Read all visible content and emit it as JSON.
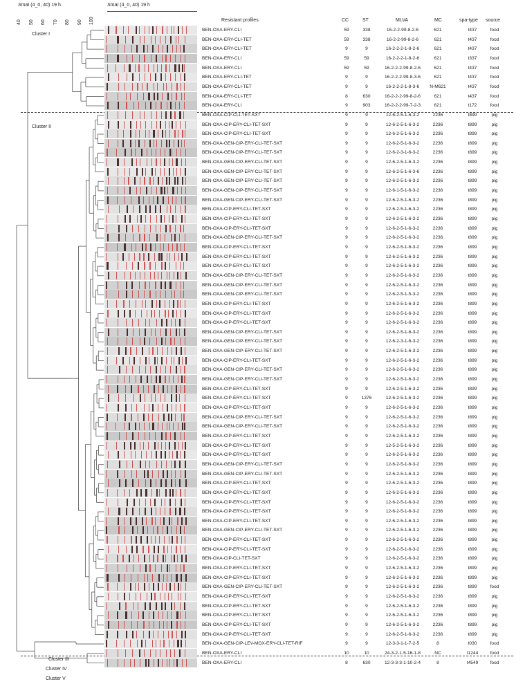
{
  "header": {
    "left_title_italic": "SmaI",
    "left_title_rest": " (4_0, 40) 19 h",
    "gel_title_italic": "SmaI",
    "gel_title_rest": " (4_0, 40) 19 h",
    "scale_ticks": [
      "40",
      "50",
      "60",
      "70",
      "80",
      "90",
      "100"
    ]
  },
  "columns": {
    "profile": "Resistant profiles",
    "cc": "CC",
    "st": "ST",
    "mlva": "MLVA",
    "mc": "MC",
    "spa": "spa-type",
    "source": "source"
  },
  "clusters": [
    {
      "label": "Cluster I"
    },
    {
      "label": "Cluster II"
    },
    {
      "label": "Cluster III"
    },
    {
      "label": "Cluster IV"
    },
    {
      "label": "Cluster V"
    }
  ],
  "rows": [
    {
      "profile": "BEN-OXA-ERY-CLI",
      "cc": "59",
      "st": "338",
      "mlva": "16-2-2-99-8-2-6",
      "mc": "621",
      "spa": "t437",
      "source": "food"
    },
    {
      "profile": "BEN-OXA-ERY-CLI-TET",
      "cc": "59",
      "st": "338",
      "mlva": "16-2-2-99-8-2-6",
      "mc": "621",
      "spa": "t437",
      "source": "food"
    },
    {
      "profile": "BEN-OXA-ERY-CLI-TET",
      "cc": "9",
      "st": "9",
      "mlva": "16-2-2-2-1-8-2-6",
      "mc": "621",
      "spa": "t437",
      "source": "food"
    },
    {
      "profile": "BEN-OXA-ERY-CLI",
      "cc": "59",
      "st": "59",
      "mlva": "16-2-2-2-1-8-2-6",
      "mc": "621",
      "spa": "t337",
      "source": "food"
    },
    {
      "profile": "BEN-OXA-ERY-CLI",
      "cc": "59",
      "st": "59",
      "mlva": "16-2-2-2-99-8-2-6",
      "mc": "621",
      "spa": "t437",
      "source": "food"
    },
    {
      "profile": "BEN-OXA-ERY-CLI-TET",
      "cc": "9",
      "st": "9",
      "mlva": "16-2-2-2-99-8-3-6",
      "mc": "621",
      "spa": "t437",
      "source": "food"
    },
    {
      "profile": "BEN-OXA-ERY-CLI-TET",
      "cc": "9",
      "st": "9",
      "mlva": "16-2-2-2-1-8-3-6",
      "mc": "N-M621",
      "spa": "t437",
      "source": "food"
    },
    {
      "profile": "BEN-OXA-ERY-CLI-TET",
      "cc": "8",
      "st": "630",
      "mlva": "16-2-2-2-99-8-2-6",
      "mc": "621",
      "spa": "t437",
      "source": "food"
    },
    {
      "profile": "BEN-OXA-ERY-CLI",
      "cc": "9",
      "st": "903",
      "mlva": "16-2-2-2-99-7-2-3",
      "mc": "621",
      "spa": "t172",
      "source": "food"
    },
    {
      "profile": "BEN-OXA-CIP-CLI-TET-SXT",
      "cc": "9",
      "st": "9",
      "mlva": "12-6-2-5-1-6-3-2",
      "mc": "2236",
      "spa": "t899",
      "source": "pig"
    },
    {
      "profile": "BEN-OXA-CIP-ERY-CLI-TET-SXT",
      "cc": "9",
      "st": "9",
      "mlva": "12-6-2-5-1-6-3-2",
      "mc": "2236",
      "spa": "t899",
      "source": "pig"
    },
    {
      "profile": "BEN-OXA-CIP-ERY-CLI-TET-SXT",
      "cc": "9",
      "st": "9",
      "mlva": "12-6-2-5-1-6-3-2",
      "mc": "2236",
      "spa": "t899",
      "source": "pig"
    },
    {
      "profile": "BEN-OXA-GEN-CIP-ERY-CLI-TET-SXT",
      "cc": "9",
      "st": "9",
      "mlva": "12-6-2-5-1-6-3-2",
      "mc": "2236",
      "spa": "t899",
      "source": "pig"
    },
    {
      "profile": "BEN-OXA-GEN-CIP-ERY-CLI-TET-SXT",
      "cc": "9",
      "st": "9",
      "mlva": "12-6-2-3-1-6-3-2",
      "mc": "2236",
      "spa": "t899",
      "source": "pig"
    },
    {
      "profile": "BEN-OXA-GEN-CIP-ERY-CLI-TET-SXT",
      "cc": "9",
      "st": "9",
      "mlva": "12-6-2-5-1-6-3-2",
      "mc": "2236",
      "spa": "t899",
      "source": "pig"
    },
    {
      "profile": "BEN-OXA-GEN-CIP-ERY-CLI-TET-SXT",
      "cc": "9",
      "st": "9",
      "mlva": "12-6-2-5-1-6-3-6",
      "mc": "2236",
      "spa": "t899",
      "source": "pig"
    },
    {
      "profile": "BEN-OXA-GEN-CIP-ERY-CLI-TET-SXT",
      "cc": "9",
      "st": "9",
      "mlva": "12-6-2-5-1-6-3-2",
      "mc": "2236",
      "spa": "t899",
      "source": "pig"
    },
    {
      "profile": "BEN-OXA-GEN-CIP-ERY-CLI-TET-SXT",
      "cc": "9",
      "st": "9",
      "mlva": "12-6-1-5-1-6-3-2",
      "mc": "2236",
      "spa": "t899",
      "source": "pig"
    },
    {
      "profile": "BEN-OXA-GEN-CIP-ERY-CLI-TET-SXT",
      "cc": "9",
      "st": "9",
      "mlva": "12-6-2-5-1-6-3-2",
      "mc": "2236",
      "spa": "t899",
      "source": "pig"
    },
    {
      "profile": "BEN-OXA-CIP-ERY-CLI-TET-SXT",
      "cc": "9",
      "st": "9",
      "mlva": "12-6-2-5-1-6-3-2",
      "mc": "2236",
      "spa": "t899",
      "source": "pig"
    },
    {
      "profile": "BEN-OXA-CIP-ERY-CLI-TET-SXT",
      "cc": "9",
      "st": "9",
      "mlva": "12-6-2-5-1-6-3-2",
      "mc": "2236",
      "spa": "t899",
      "source": "pig"
    },
    {
      "profile": "BEN-OXA-CIP-ERY-CLI-TET-SXT",
      "cc": "9",
      "st": "9",
      "mlva": "12-6-2-5-1-6-3-2",
      "mc": "2236",
      "spa": "t899",
      "source": "pig"
    },
    {
      "profile": "BEN-OXA-GEN-CIP-ERY-CLI-TET-SXT",
      "cc": "9",
      "st": "9",
      "mlva": "12-6-2-5-1-6-3-2",
      "mc": "2236",
      "spa": "t899",
      "source": "pig"
    },
    {
      "profile": "BEN-OXA-CIP-ERY-CLI-TET-SXT",
      "cc": "9",
      "st": "9",
      "mlva": "12-6-2-5-1-6-3-2",
      "mc": "2236",
      "spa": "t899",
      "source": "pig"
    },
    {
      "profile": "BEN-OXA-CIP-ERY-CLI-TET-SXT",
      "cc": "9",
      "st": "9",
      "mlva": "12-6-2-5-1-6-3-2",
      "mc": "2236",
      "spa": "t899",
      "source": "pig"
    },
    {
      "profile": "BEN-OXA-CIP-ERY-CLI-TET-SXT",
      "cc": "9",
      "st": "9",
      "mlva": "12-6-2-5-1-6-3-2",
      "mc": "2236",
      "spa": "t899",
      "source": "pig"
    },
    {
      "profile": "BEN-OXA-GEN-CIP-ERY-CLI-TET-SXT",
      "cc": "9",
      "st": "9",
      "mlva": "12-6-2-5-1-6-3-2",
      "mc": "2236",
      "spa": "t899",
      "source": "pig"
    },
    {
      "profile": "BEN-OXA-GEN-CIP-ERY-CLI-TET-SXT",
      "cc": "9",
      "st": "9",
      "mlva": "12-6-2-5-1-6-3-2",
      "mc": "2236",
      "spa": "t899",
      "source": "pig"
    },
    {
      "profile": "BEN-OXA-GEN-CIP-ERY-CLI-TET-SXT",
      "cc": "9",
      "st": "9",
      "mlva": "12-6-2-5-1-5-3-2",
      "mc": "2236",
      "spa": "t899",
      "source": "pig"
    },
    {
      "profile": "BEN-OXA-CIP-ERY-CLI-TET-SXT",
      "cc": "9",
      "st": "9",
      "mlva": "12-6-2-5-1-6-3-2",
      "mc": "2236",
      "spa": "t899",
      "source": "pig"
    },
    {
      "profile": "BEN-OXA-CIP-ERY-CLI-TET-SXT",
      "cc": "9",
      "st": "9",
      "mlva": "12-6-2-5-1-6-3-2",
      "mc": "2236",
      "spa": "t899",
      "source": "pig"
    },
    {
      "profile": "BEN-OXA-CIP-ERY-CLI-TET-SXT",
      "cc": "9",
      "st": "9",
      "mlva": "12-6-2-5-1-6-3-2",
      "mc": "2236",
      "spa": "t899",
      "source": "pig"
    },
    {
      "profile": "BEN-OXA-GEN-CIP-ERY-CLI-TET-SXT",
      "cc": "9",
      "st": "9",
      "mlva": "12-6-2-5-1-6-3-2",
      "mc": "2236",
      "spa": "t899",
      "source": "pig"
    },
    {
      "profile": "BEN-OXA-GEN-CIP-ERY-CLI-TET-SXT",
      "cc": "9",
      "st": "9",
      "mlva": "12-6-2-3-1-6-3-2",
      "mc": "2236",
      "spa": "t899",
      "source": "pig"
    },
    {
      "profile": "BEN-OXA-GEN-CIP-ERY-CLI-TET-SXT",
      "cc": "9",
      "st": "9",
      "mlva": "12-6-2-5-1-6-3-2",
      "mc": "2236",
      "spa": "t899",
      "source": "pig"
    },
    {
      "profile": "BEN-OXA-CIP-ERY-CLI-TET-SXT",
      "cc": "9",
      "st": "9",
      "mlva": "12-6-2-5-1-6-3-2",
      "mc": "2236",
      "spa": "t899",
      "source": "pig"
    },
    {
      "profile": "BEN-OXA-GEN-CIP-ERY-CLI-TET-SXT",
      "cc": "9",
      "st": "9",
      "mlva": "12-6-2-5-1-6-3-2",
      "mc": "2236",
      "spa": "t899",
      "source": "pig"
    },
    {
      "profile": "BEN-OXA-GEN-CIP-ERY-CLI-TET-SXT",
      "cc": "9",
      "st": "9",
      "mlva": "12-6-2-5-1-6-3-2",
      "mc": "2236",
      "spa": "t899",
      "source": "pig"
    },
    {
      "profile": "BEN-OXA-CIP-ERY-CLI-TET-SXT",
      "cc": "9",
      "st": "9",
      "mlva": "12-6-2-5-1-6-3-2",
      "mc": "2236",
      "spa": "t899",
      "source": "pig"
    },
    {
      "profile": "BEN-OXA-CIP-ERY-CLI-TET-SXT",
      "cc": "9",
      "st": "1376",
      "mlva": "12-6-2-5-1-6-3-2",
      "mc": "2236",
      "spa": "t899",
      "source": "pig"
    },
    {
      "profile": "BEN-OXA-CIP-ERY-CLI-TET-SXT",
      "cc": "9",
      "st": "9",
      "mlva": "12-6-2-5-1-6-3-2",
      "mc": "2236",
      "spa": "t899",
      "source": "pig"
    },
    {
      "profile": "BEN-OXA-GEN-CIP-ERY-CLI-TET-SXT",
      "cc": "9",
      "st": "9",
      "mlva": "12-6-2-5-1-6-3-2",
      "mc": "2236",
      "spa": "t899",
      "source": "pig"
    },
    {
      "profile": "BEN-OXA-GEN-CIP-ERY-CLI-TET-SXT",
      "cc": "9",
      "st": "9",
      "mlva": "12-6-2-5-1-6-3-2",
      "mc": "2236",
      "spa": "t899",
      "source": "pig"
    },
    {
      "profile": "BEN-OXA-CIP-ERY-CLI-TET-SXT",
      "cc": "9",
      "st": "9",
      "mlva": "12-6-2-5-1-6-3-2",
      "mc": "2236",
      "spa": "t899",
      "source": "pig"
    },
    {
      "profile": "BEN-OXA-CIP-ERY-CLI-TET-SXT",
      "cc": "9",
      "st": "9",
      "mlva": "12-5-2-5-1-6-3-2",
      "mc": "2236",
      "spa": "t899",
      "source": "pig"
    },
    {
      "profile": "BEN-OXA-CIP-ERY-CLI-TET-SXT",
      "cc": "9",
      "st": "9",
      "mlva": "12-6-2-5-1-6-3-2",
      "mc": "2236",
      "spa": "t899",
      "source": "pig"
    },
    {
      "profile": "BEN-OXA-GEN-CIP-ERY-CLI-TET-SXT",
      "cc": "9",
      "st": "9",
      "mlva": "12-6-2-5-1-6-3-2",
      "mc": "2236",
      "spa": "t899",
      "source": "pig"
    },
    {
      "profile": "BEN-OXA-GEN-CIP-ERY-CLI-TET-SXT",
      "cc": "9",
      "st": "9",
      "mlva": "12-6-2-5-1-6-3-2",
      "mc": "2236",
      "spa": "t899",
      "source": "pig"
    },
    {
      "profile": "BEN-OXA-CIP-ERY-CLI-TET-SXT",
      "cc": "9",
      "st": "9",
      "mlva": "12-6-2-5-1-6-3-2",
      "mc": "2236",
      "spa": "t899",
      "source": "pig"
    },
    {
      "profile": "BEN-OXA-CIP-ERY-CLI-TET-SXT",
      "cc": "9",
      "st": "9",
      "mlva": "12-6-2-5-1-6-3-2",
      "mc": "2236",
      "spa": "t899",
      "source": "pig"
    },
    {
      "profile": "BEN-OXA-CIP-ERY-CLI-TET-SXT",
      "cc": "9",
      "st": "9",
      "mlva": "12-6-2-5-1-6-3-2",
      "mc": "2236",
      "spa": "t899",
      "source": "pig"
    },
    {
      "profile": "BEN-OXA-CIP-ERY-CLI-TET-SXT",
      "cc": "9",
      "st": "9",
      "mlva": "12-6-2-5-1-6-3-2",
      "mc": "2236",
      "spa": "t899",
      "source": "pig"
    },
    {
      "profile": "BEN-OXA-CIP-ERY-CLI-TET-SXT",
      "cc": "9",
      "st": "9",
      "mlva": "12-6-2-5-1-6-3-2",
      "mc": "2236",
      "spa": "t899",
      "source": "pig"
    },
    {
      "profile": "BEN-OXA-GEN-CIP-ERY-CLI-TET-SXT",
      "cc": "9",
      "st": "9",
      "mlva": "12-6-2-5-1-6-3-2",
      "mc": "2236",
      "spa": "t899",
      "source": "pig"
    },
    {
      "profile": "BEN-OXA-CIP-ERY-CLI-TET-SXT",
      "cc": "9",
      "st": "9",
      "mlva": "12-6-2-5-1-6-3-2",
      "mc": "2236",
      "spa": "t899",
      "source": "pig"
    },
    {
      "profile": "BEN-OXA-CIP-ERY-CLI-TET-SXT",
      "cc": "9",
      "st": "9",
      "mlva": "12-6-2-5-1-6-3-2",
      "mc": "2236",
      "spa": "t899",
      "source": "pig"
    },
    {
      "profile": "BEN-OXA-CIP-CLI-TET-SXT",
      "cc": "9",
      "st": "9",
      "mlva": "12-6-2-5-1-6-3-2",
      "mc": "2236",
      "spa": "t899",
      "source": "pig"
    },
    {
      "profile": "BEN-OXA-CIP-ERY-CLI-TET-SXT",
      "cc": "9",
      "st": "9",
      "mlva": "12-6-2-5-1-6-3-2",
      "mc": "2236",
      "spa": "t899",
      "source": "pig"
    },
    {
      "profile": "BEN-OXA-CIP-ERY-CLI-TET-SXT",
      "cc": "9",
      "st": "9",
      "mlva": "12-6-2-5-1-6-3-2",
      "mc": "2236",
      "spa": "t899",
      "source": "pig"
    },
    {
      "profile": "BEN-OXA-GEN-CIP-ERY-CLI-TET-SXT",
      "cc": "9",
      "st": "9",
      "mlva": "12-6-2-5-1-6-3-2",
      "mc": "2236",
      "spa": "t899",
      "source": "food"
    },
    {
      "profile": "BEN-OXA-CIP-ERY-CLI-TET-SXT",
      "cc": "9",
      "st": "9",
      "mlva": "12-6-2-5-1-6-3-2",
      "mc": "2236",
      "spa": "t899",
      "source": "pig"
    },
    {
      "profile": "BEN-OXA-CIP-ERY-CLI-TET-SXT",
      "cc": "9",
      "st": "9",
      "mlva": "12-6-2-5-1-6-3-2",
      "mc": "2236",
      "spa": "t899",
      "source": "pig"
    },
    {
      "profile": "BEN-OXA-CIP-ERY-CLI-TET-SXT",
      "cc": "9",
      "st": "9",
      "mlva": "12-6-2-5-1-6-3-2",
      "mc": "2236",
      "spa": "t899",
      "source": "pig"
    },
    {
      "profile": "BEN-OXA-CIP-ERY-CLI-TET-SXT",
      "cc": "9",
      "st": "9",
      "mlva": "12-6-2-5-1-6-3-2",
      "mc": "2236",
      "spa": "t899",
      "source": "pig"
    },
    {
      "profile": "BEN-OXA-CIP-ERY-CLI-TET-SXT",
      "cc": "9",
      "st": "9",
      "mlva": "12-6-2-5-1-6-3-2",
      "mc": "2236",
      "spa": "t899",
      "source": "pig"
    },
    {
      "profile": "BEN-OXA-GEN-CIP-LEV-MOX-ERY-CLI-TET-RIF",
      "cc": "9",
      "st": "9",
      "mlva": "12-3-3-1-1-7-2-5",
      "mc": "8",
      "spa": "t030",
      "source": "food"
    },
    {
      "profile": "BEN-OXA-ERY-CLI",
      "cc": "10",
      "st": "10",
      "mlva": "24-3-2-1-5-16-1-8",
      "mc": "NC",
      "spa": "t1244",
      "source": "food"
    },
    {
      "profile": "BEN-OXA-ERY-CLI",
      "cc": "8",
      "st": "630",
      "mlva": "12-3-3-3-1-10-2-4",
      "mc": "8",
      "spa": "t4549",
      "source": "food"
    }
  ]
}
